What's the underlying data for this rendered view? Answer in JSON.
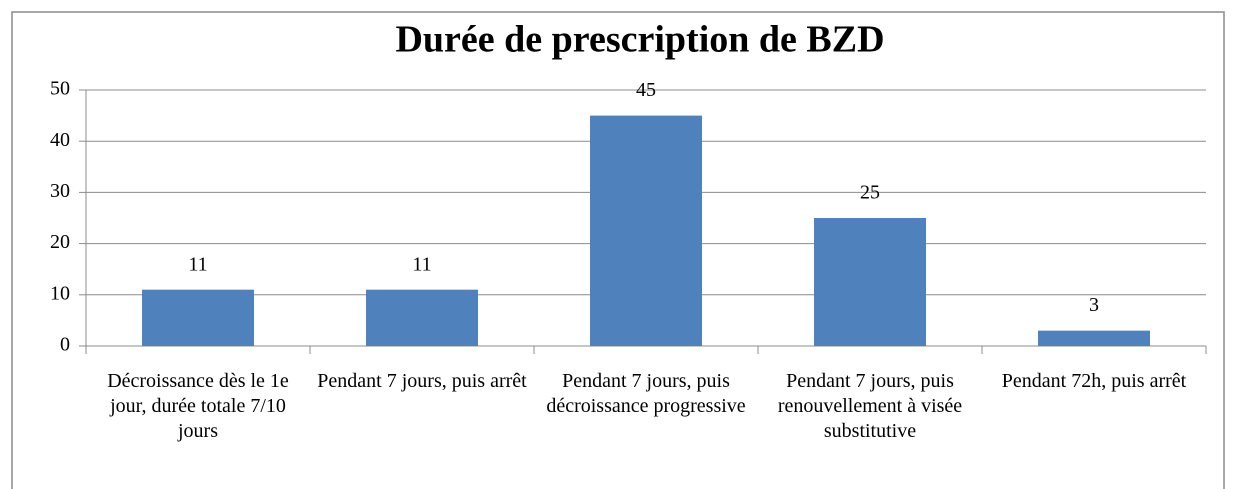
{
  "chart_data": {
    "type": "bar",
    "title": "Durée de prescription de BZD",
    "categories": [
      "Décroissance dès le 1e jour, durée totale 7/10 jours",
      "Pendant 7 jours, puis arrêt",
      "Pendant 7 jours, puis décroissance progressive",
      "Pendant 7 jours, puis renouvellement à visée substitutive",
      "Pendant 72h, puis arrêt"
    ],
    "values": [
      11,
      11,
      45,
      25,
      3
    ],
    "color": "#4f81bd",
    "ylim": [
      0,
      50
    ],
    "yticks": [
      0,
      10,
      20,
      30,
      40,
      50
    ],
    "grid": true
  }
}
